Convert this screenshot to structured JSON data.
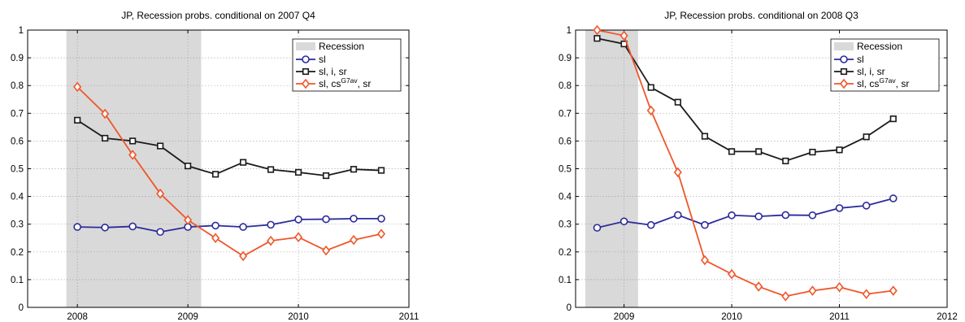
{
  "chart_data": [
    {
      "type": "line",
      "title": "JP, Recession probs. conditional on 2007 Q4",
      "xlim": [
        2007.55,
        2011
      ],
      "ylim": [
        0,
        1
      ],
      "xticks": [
        2008,
        2009,
        2010,
        2011
      ],
      "yticks": [
        0,
        0.1,
        0.2,
        0.3,
        0.4,
        0.5,
        0.6,
        0.7,
        0.8,
        0.9,
        1
      ],
      "ytick_labels": [
        "0",
        "0.1",
        "0.2",
        "0.3",
        "0.4",
        "0.5",
        "0.6",
        "0.7",
        "0.8",
        "0.9",
        "1"
      ],
      "grid": true,
      "legend_position": "top-right",
      "recession": {
        "label": "Recession",
        "start": 2007.9,
        "end": 2009.12,
        "color": "#d9d9d9"
      },
      "x": [
        2008.0,
        2008.25,
        2008.5,
        2008.75,
        2009.0,
        2009.25,
        2009.5,
        2009.75,
        2010.0,
        2010.25,
        2010.5,
        2010.75
      ],
      "series": [
        {
          "name": "sl",
          "name_sup": "",
          "name_suffix": "",
          "color": "#2b2b9c",
          "marker": "circle",
          "values": [
            0.29,
            0.288,
            0.292,
            0.272,
            0.29,
            0.295,
            0.29,
            0.298,
            0.317,
            0.318,
            0.32,
            0.32
          ]
        },
        {
          "name": "sl, i, sr",
          "name_sup": "",
          "name_suffix": "",
          "color": "#1a1a1a",
          "marker": "square",
          "values": [
            0.675,
            0.61,
            0.6,
            0.582,
            0.51,
            0.48,
            0.523,
            0.497,
            0.487,
            0.475,
            0.498,
            0.494
          ]
        },
        {
          "name": "sl, cs",
          "name_sup": "G7av",
          "name_suffix": ", sr",
          "color": "#f0562a",
          "marker": "diamond",
          "values": [
            0.795,
            0.698,
            0.55,
            0.41,
            0.315,
            0.25,
            0.185,
            0.24,
            0.253,
            0.205,
            0.243,
            0.265
          ]
        }
      ]
    },
    {
      "type": "line",
      "title": "JP, Recession probs. conditional on 2008 Q3",
      "xlim": [
        2008.55,
        2012
      ],
      "ylim": [
        0,
        1
      ],
      "xticks": [
        2009,
        2010,
        2011,
        2012
      ],
      "yticks": [
        0,
        0.1,
        0.2,
        0.3,
        0.4,
        0.5,
        0.6,
        0.7,
        0.8,
        0.9,
        1
      ],
      "ytick_labels": [
        "0",
        "0.1",
        "0.2",
        "0.3",
        "0.4",
        "0.5",
        "0.6",
        "0.7",
        "0.8",
        "0.9",
        "1"
      ],
      "grid": true,
      "legend_position": "top-right",
      "recession": {
        "label": "Recession",
        "start": 2008.64,
        "end": 2009.13,
        "color": "#d9d9d9"
      },
      "x": [
        2008.75,
        2009.0,
        2009.25,
        2009.5,
        2009.75,
        2010.0,
        2010.25,
        2010.5,
        2010.75,
        2011.0,
        2011.25,
        2011.5
      ],
      "series": [
        {
          "name": "sl",
          "name_sup": "",
          "name_suffix": "",
          "color": "#2b2b9c",
          "marker": "circle",
          "values": [
            0.287,
            0.31,
            0.297,
            0.333,
            0.297,
            0.332,
            0.328,
            0.333,
            0.332,
            0.358,
            0.367,
            0.393
          ]
        },
        {
          "name": "sl, i, sr",
          "name_sup": "",
          "name_suffix": "",
          "color": "#1a1a1a",
          "marker": "square",
          "values": [
            0.97,
            0.95,
            0.793,
            0.74,
            0.617,
            0.562,
            0.562,
            0.528,
            0.56,
            0.568,
            0.615,
            0.68
          ]
        },
        {
          "name": "sl, cs",
          "name_sup": "G7av",
          "name_suffix": ", sr",
          "color": "#f0562a",
          "marker": "diamond",
          "values": [
            1.0,
            0.98,
            0.71,
            0.487,
            0.17,
            0.12,
            0.075,
            0.04,
            0.06,
            0.073,
            0.048,
            0.06
          ]
        }
      ]
    }
  ]
}
